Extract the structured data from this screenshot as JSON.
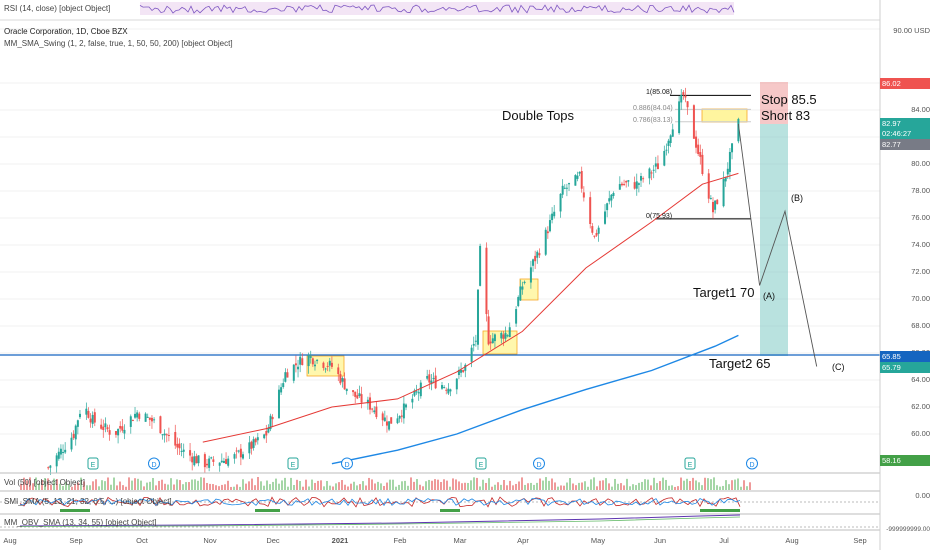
{
  "header": {
    "rsi_label": "RSI (14, close) [object Object]",
    "title": "Oracle Corporation, 1D, Cboe BZX",
    "indicator": "MM_SMA_Swing (1, 2, false, true, 1, 50, 50, 200) [object Object]"
  },
  "price_axis": {
    "currency": "USD",
    "ticks": [
      "90.00",
      "86.00",
      "84.00",
      "82.00",
      "80.00",
      "78.00",
      "76.00",
      "74.00",
      "72.00",
      "70.00",
      "68.00",
      "66.00",
      "64.00",
      "62.00",
      "60.00"
    ],
    "tags": [
      {
        "text": "86.02",
        "color": "#ef5350"
      },
      {
        "text": "82.97",
        "color": "#26a69a"
      },
      {
        "text": "02:46:27",
        "color": "#26a69a"
      },
      {
        "text": "82.77",
        "color": "#787b86"
      },
      {
        "text": "65.85",
        "color": "#1565c0"
      },
      {
        "text": "65.79",
        "color": "#26a69a"
      },
      {
        "text": "58.16",
        "color": "#43a047"
      }
    ]
  },
  "fib": {
    "levels": [
      "1(85.08)",
      "0.886(84.04)",
      "0.786(83.13)",
      "0(75.93)"
    ]
  },
  "annotations": {
    "double_tops": "Double Tops",
    "stop": "Stop 85.5",
    "short": "Short 83",
    "target1": "Target1  70",
    "target2": "Target2 65",
    "wave_a": "(A)",
    "wave_b": "(B)",
    "wave_c": "(C)"
  },
  "events": [
    "E",
    "D",
    "E",
    "D",
    "E",
    "D",
    "E",
    "D"
  ],
  "lower_panels": {
    "vol_label": "Vol (50) [object Object]",
    "smi_label": "SMI_SMA (5, 13, 21, 32, 0.5, ...) [object Object]",
    "obv_label": "MM_OBV_SMA (13, 34, 55) [object Object]",
    "vol_tick": "0.00",
    "obv_tick": "-999999999.00"
  },
  "time_axis": {
    "labels": [
      "Aug",
      "Sep",
      "Oct",
      "Nov",
      "Dec",
      "2021",
      "Feb",
      "Mar",
      "Apr",
      "May",
      "Jun",
      "Jul",
      "Aug",
      "Sep"
    ]
  },
  "chart_data": {
    "type": "candlestick",
    "title": "Oracle Corporation, 1D, Cboe BZX",
    "ylabel": "USD",
    "ylim": [
      58,
      91
    ],
    "x_range": [
      "2020-08-01",
      "2021-09-15"
    ],
    "support_level": 65.85,
    "series": [
      {
        "name": "price",
        "points": [
          [
            "2020-08-20",
            57.5
          ],
          [
            "2020-09-01",
            60.0
          ],
          [
            "2020-09-05",
            62.3
          ],
          [
            "2020-09-10",
            61.0
          ],
          [
            "2020-09-20",
            60.0
          ],
          [
            "2020-10-01",
            61.6
          ],
          [
            "2020-10-10",
            60.8
          ],
          [
            "2020-10-20",
            59.0
          ],
          [
            "2020-11-01",
            57.8
          ],
          [
            "2020-11-15",
            58.2
          ],
          [
            "2020-11-25",
            59.2
          ],
          [
            "2020-12-01",
            60.0
          ],
          [
            "2020-12-10",
            64.5
          ],
          [
            "2020-12-20",
            65.8
          ],
          [
            "2021-01-01",
            65.0
          ],
          [
            "2021-01-10",
            63.0
          ],
          [
            "2021-01-20",
            62.0
          ],
          [
            "2021-01-28",
            60.8
          ],
          [
            "2021-02-05",
            62.0
          ],
          [
            "2021-02-15",
            64.0
          ],
          [
            "2021-02-25",
            63.5
          ],
          [
            "2021-03-05",
            65.0
          ],
          [
            "2021-03-10",
            67.0
          ],
          [
            "2021-03-12",
            73.5
          ],
          [
            "2021-03-16",
            67.0
          ],
          [
            "2021-03-25",
            67.5
          ],
          [
            "2021-04-01",
            71.0
          ],
          [
            "2021-04-10",
            74.0
          ],
          [
            "2021-04-20",
            78.0
          ],
          [
            "2021-04-28",
            79.0
          ],
          [
            "2021-05-05",
            74.5
          ],
          [
            "2021-05-15",
            78.5
          ],
          [
            "2021-05-25",
            78.5
          ],
          [
            "2021-06-05",
            80.0
          ],
          [
            "2021-06-12",
            83.5
          ],
          [
            "2021-06-16",
            85.08
          ],
          [
            "2021-06-22",
            81.5
          ],
          [
            "2021-06-30",
            76.5
          ],
          [
            "2021-07-05",
            78.6
          ],
          [
            "2021-07-12",
            82.97
          ]
        ]
      },
      {
        "name": "sma_50",
        "points": [
          [
            "2020-11-01",
            59.4
          ],
          [
            "2020-12-01",
            60.4
          ],
          [
            "2021-01-01",
            62.0
          ],
          [
            "2021-02-01",
            62.6
          ],
          [
            "2021-03-01",
            64.6
          ],
          [
            "2021-04-01",
            67.6
          ],
          [
            "2021-05-01",
            72.3
          ],
          [
            "2021-06-01",
            75.7
          ],
          [
            "2021-06-25",
            78.5
          ],
          [
            "2021-07-12",
            79.3
          ]
        ]
      },
      {
        "name": "sma_200",
        "points": [
          [
            "2021-01-01",
            57.8
          ],
          [
            "2021-02-01",
            58.8
          ],
          [
            "2021-03-01",
            60.0
          ],
          [
            "2021-04-01",
            61.8
          ],
          [
            "2021-05-01",
            63.3
          ],
          [
            "2021-06-01",
            64.7
          ],
          [
            "2021-07-01",
            66.5
          ],
          [
            "2021-07-12",
            67.3
          ]
        ]
      },
      {
        "name": "projection",
        "points": [
          [
            "2021-07-12",
            82.97
          ],
          [
            "2021-07-22",
            71.0
          ],
          [
            "2021-08-03",
            76.5
          ],
          [
            "2021-08-18",
            65.0
          ]
        ]
      }
    ],
    "fib_levels": [
      {
        "label": "1",
        "value": 85.08
      },
      {
        "label": "0.886",
        "value": 84.04
      },
      {
        "label": "0.786",
        "value": 83.13
      },
      {
        "label": "0",
        "value": 75.93
      }
    ],
    "trade": {
      "stop": 85.5,
      "entry": 83,
      "target1": 70,
      "target2": 65
    }
  }
}
